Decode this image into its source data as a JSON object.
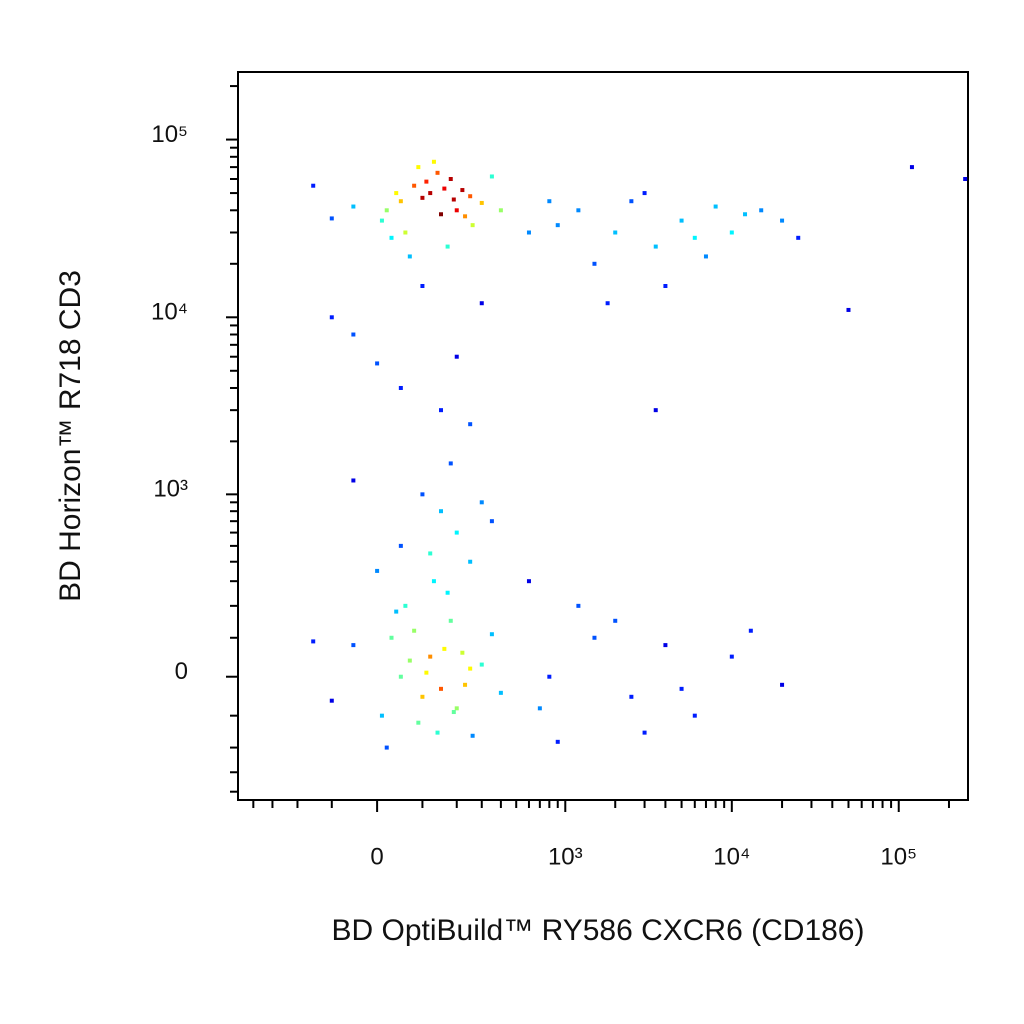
{
  "chart_data": {
    "type": "scatter",
    "x_label": "BD OptiBuild™ RY586 CXCR6 (CD186)",
    "y_label": "BD Horizon™ R718 CD3",
    "scale": "biexponential",
    "xlim": [
      -500,
      260000
    ],
    "ylim": [
      -450,
      240000
    ],
    "xticks": [
      {
        "value": 0,
        "label": "0"
      },
      {
        "value": 1000,
        "label": "10³"
      },
      {
        "value": 10000,
        "label": "10⁴"
      },
      {
        "value": 100000,
        "label": "10⁵"
      }
    ],
    "yticks": [
      {
        "value": 0,
        "label": "0"
      },
      {
        "value": 1000,
        "label": "10³"
      },
      {
        "value": 10000,
        "label": "10⁴"
      },
      {
        "value": 100000,
        "label": "10⁵"
      }
    ],
    "xminorticks": [
      -400,
      -300,
      -200,
      -100,
      100,
      200,
      300,
      400,
      500,
      600,
      700,
      800,
      900,
      2000,
      3000,
      4000,
      5000,
      6000,
      7000,
      8000,
      9000,
      20000,
      30000,
      40000,
      50000,
      60000,
      70000,
      80000,
      90000,
      200000
    ],
    "yminorticks": [
      -400,
      -300,
      -200,
      -100,
      100,
      200,
      300,
      400,
      500,
      600,
      700,
      800,
      900,
      2000,
      3000,
      4000,
      5000,
      6000,
      7000,
      8000,
      9000,
      20000,
      30000,
      40000,
      50000,
      60000,
      70000,
      80000,
      90000,
      200000
    ],
    "colormap": "jet",
    "x": [
      50,
      120,
      200,
      80,
      150,
      -50,
      250,
      10,
      180,
      100,
      60,
      140,
      220,
      30,
      90,
      300,
      -100,
      170,
      110,
      40,
      400,
      -150,
      260,
      130,
      70,
      190,
      350,
      20,
      160,
      230,
      1200,
      2000,
      3500,
      5000,
      8000,
      12000,
      1500,
      2500,
      6000,
      15000,
      900,
      4000,
      10000,
      20000,
      3000,
      7000,
      1800,
      600,
      800,
      25000,
      100,
      -50,
      200,
      300,
      50,
      150,
      -100,
      250,
      0,
      180,
      50,
      120,
      200,
      80,
      150,
      -50,
      250,
      10,
      180,
      100,
      60,
      140,
      220,
      30,
      90,
      300,
      -100,
      170,
      110,
      40,
      400,
      -150,
      260,
      130,
      70,
      190,
      350,
      20,
      160,
      230,
      800,
      1500,
      2500,
      4000,
      6000,
      10000,
      1200,
      3000,
      20000,
      700,
      2000,
      5000,
      13000,
      600,
      900,
      50,
      150,
      250,
      -50,
      200,
      100,
      350,
      0,
      300,
      120,
      50000,
      120000,
      250000,
      3500
    ],
    "values": [
      45000,
      50000,
      40000,
      55000,
      38000,
      42000,
      48000,
      35000,
      60000,
      47000,
      30000,
      65000,
      52000,
      28000,
      70000,
      44000,
      36000,
      25000,
      58000,
      50000,
      40000,
      55000,
      33000,
      75000,
      22000,
      46000,
      62000,
      40000,
      53000,
      37000,
      40000,
      30000,
      25000,
      35000,
      42000,
      38000,
      20000,
      45000,
      28000,
      40000,
      33000,
      15000,
      30000,
      35000,
      50000,
      22000,
      12000,
      30000,
      45000,
      28000,
      15000,
      8000,
      6000,
      12000,
      4000,
      3000,
      10000,
      2500,
      5500,
      1500,
      0,
      50,
      -80,
      120,
      -30,
      80,
      20,
      -100,
      150,
      -50,
      200,
      -150,
      60,
      100,
      -120,
      30,
      -60,
      250,
      10,
      180,
      -40,
      90,
      -160,
      300,
      40,
      -90,
      110,
      -200,
      70,
      -20,
      0,
      100,
      -50,
      80,
      -100,
      50,
      200,
      -150,
      -20,
      -80,
      150,
      -30,
      120,
      300,
      -180,
      500,
      800,
      400,
      1200,
      600,
      1000,
      700,
      350,
      900,
      450,
      11000,
      70000,
      60000,
      3000
    ]
  }
}
